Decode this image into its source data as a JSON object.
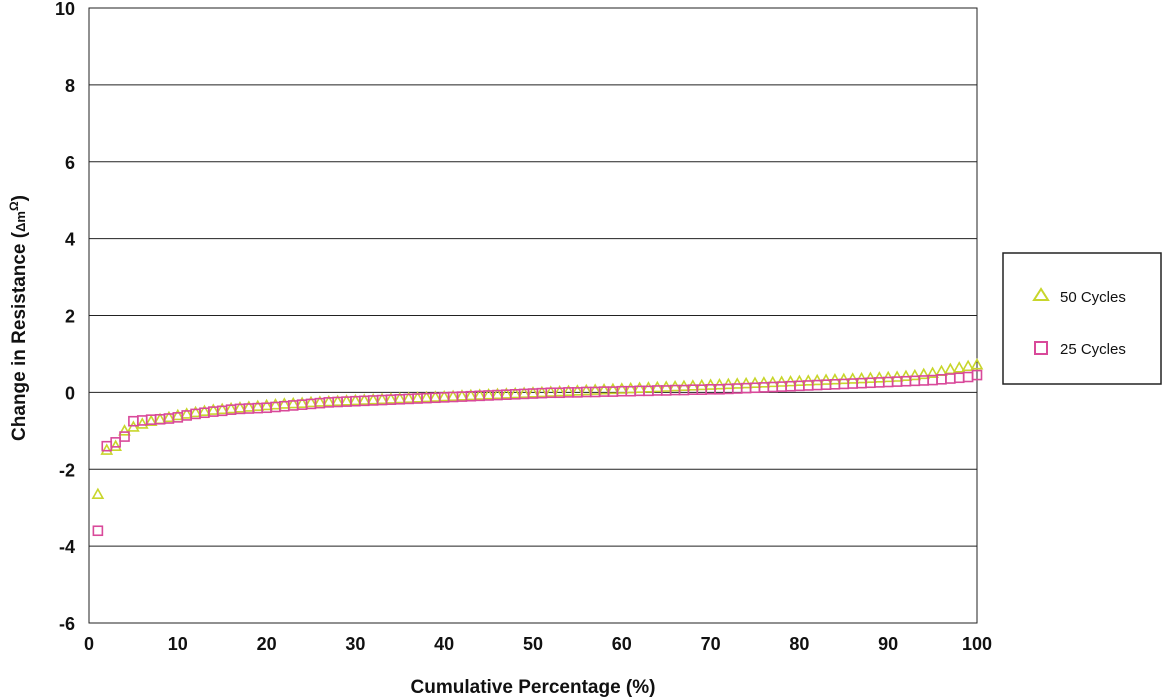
{
  "chart_data": {
    "type": "scatter",
    "title": "",
    "xlabel": "Cumulative Percentage (%)",
    "ylabel_prefix": "Change in Resistance (",
    "ylabel_symbol": "Δm",
    "ylabel_superscript": "Ω",
    "ylabel_suffix": ")",
    "xlim": [
      0,
      100
    ],
    "ylim": [
      -6,
      10
    ],
    "xticks": [
      0,
      10,
      20,
      30,
      40,
      50,
      60,
      70,
      80,
      90,
      100
    ],
    "yticks": [
      -6,
      -4,
      -2,
      0,
      2,
      4,
      6,
      8,
      10
    ],
    "grid": "horizontal",
    "legend_position": "right",
    "series": [
      {
        "name": "50 Cycles",
        "marker": "triangle",
        "color": "#c8d62b",
        "values": [
          [
            1,
            -2.65
          ],
          [
            2,
            -1.5
          ],
          [
            3,
            -1.4
          ],
          [
            4,
            -1.0
          ],
          [
            5,
            -0.9
          ],
          [
            6,
            -0.82
          ],
          [
            7,
            -0.75
          ],
          [
            8,
            -0.7
          ],
          [
            9,
            -0.65
          ],
          [
            10,
            -0.6
          ],
          [
            11,
            -0.56
          ],
          [
            12,
            -0.52
          ],
          [
            13,
            -0.49
          ],
          [
            14,
            -0.46
          ],
          [
            15,
            -0.44
          ],
          [
            16,
            -0.42
          ],
          [
            17,
            -0.4
          ],
          [
            18,
            -0.38
          ],
          [
            19,
            -0.36
          ],
          [
            20,
            -0.34
          ],
          [
            21,
            -0.32
          ],
          [
            22,
            -0.3
          ],
          [
            23,
            -0.29
          ],
          [
            24,
            -0.28
          ],
          [
            25,
            -0.26
          ],
          [
            26,
            -0.25
          ],
          [
            27,
            -0.24
          ],
          [
            28,
            -0.23
          ],
          [
            29,
            -0.22
          ],
          [
            30,
            -0.21
          ],
          [
            31,
            -0.2
          ],
          [
            32,
            -0.19
          ],
          [
            33,
            -0.18
          ],
          [
            34,
            -0.17
          ],
          [
            35,
            -0.16
          ],
          [
            36,
            -0.15
          ],
          [
            37,
            -0.14
          ],
          [
            38,
            -0.13
          ],
          [
            39,
            -0.12
          ],
          [
            40,
            -0.11
          ],
          [
            41,
            -0.1
          ],
          [
            42,
            -0.09
          ],
          [
            43,
            -0.08
          ],
          [
            44,
            -0.07
          ],
          [
            45,
            -0.06
          ],
          [
            46,
            -0.05
          ],
          [
            47,
            -0.04
          ],
          [
            48,
            -0.03
          ],
          [
            49,
            -0.02
          ],
          [
            50,
            -0.01
          ],
          [
            51,
            0.0
          ],
          [
            52,
            0.01
          ],
          [
            53,
            0.02
          ],
          [
            54,
            0.03
          ],
          [
            55,
            0.04
          ],
          [
            56,
            0.05
          ],
          [
            57,
            0.06
          ],
          [
            58,
            0.07
          ],
          [
            59,
            0.08
          ],
          [
            60,
            0.09
          ],
          [
            61,
            0.1
          ],
          [
            62,
            0.11
          ],
          [
            63,
            0.12
          ],
          [
            64,
            0.13
          ],
          [
            65,
            0.14
          ],
          [
            66,
            0.15
          ],
          [
            67,
            0.16
          ],
          [
            68,
            0.17
          ],
          [
            69,
            0.18
          ],
          [
            70,
            0.19
          ],
          [
            71,
            0.2
          ],
          [
            72,
            0.21
          ],
          [
            73,
            0.22
          ],
          [
            74,
            0.23
          ],
          [
            75,
            0.24
          ],
          [
            76,
            0.25
          ],
          [
            77,
            0.26
          ],
          [
            78,
            0.27
          ],
          [
            79,
            0.28
          ],
          [
            80,
            0.29
          ],
          [
            81,
            0.3
          ],
          [
            82,
            0.31
          ],
          [
            83,
            0.32
          ],
          [
            84,
            0.33
          ],
          [
            85,
            0.34
          ],
          [
            86,
            0.35
          ],
          [
            87,
            0.36
          ],
          [
            88,
            0.37
          ],
          [
            89,
            0.38
          ],
          [
            90,
            0.39
          ],
          [
            91,
            0.4
          ],
          [
            92,
            0.42
          ],
          [
            93,
            0.44
          ],
          [
            94,
            0.47
          ],
          [
            95,
            0.5
          ],
          [
            96,
            0.55
          ],
          [
            97,
            0.6
          ],
          [
            98,
            0.64
          ],
          [
            99,
            0.68
          ],
          [
            100,
            0.72
          ]
        ]
      },
      {
        "name": "25 Cycles",
        "marker": "square",
        "color": "#d9499a",
        "values": [
          [
            1,
            -3.6
          ],
          [
            2,
            -1.4
          ],
          [
            3,
            -1.3
          ],
          [
            4,
            -1.15
          ],
          [
            5,
            -0.75
          ],
          [
            6,
            -0.73
          ],
          [
            7,
            -0.71
          ],
          [
            8,
            -0.7
          ],
          [
            9,
            -0.68
          ],
          [
            10,
            -0.65
          ],
          [
            11,
            -0.6
          ],
          [
            12,
            -0.56
          ],
          [
            13,
            -0.53
          ],
          [
            14,
            -0.5
          ],
          [
            15,
            -0.48
          ],
          [
            16,
            -0.45
          ],
          [
            17,
            -0.43
          ],
          [
            18,
            -0.42
          ],
          [
            19,
            -0.41
          ],
          [
            20,
            -0.4
          ],
          [
            21,
            -0.38
          ],
          [
            22,
            -0.36
          ],
          [
            23,
            -0.34
          ],
          [
            24,
            -0.32
          ],
          [
            25,
            -0.3
          ],
          [
            26,
            -0.28
          ],
          [
            27,
            -0.26
          ],
          [
            28,
            -0.25
          ],
          [
            29,
            -0.24
          ],
          [
            30,
            -0.23
          ],
          [
            31,
            -0.22
          ],
          [
            32,
            -0.21
          ],
          [
            33,
            -0.2
          ],
          [
            34,
            -0.19
          ],
          [
            35,
            -0.18
          ],
          [
            36,
            -0.17
          ],
          [
            37,
            -0.16
          ],
          [
            38,
            -0.15
          ],
          [
            39,
            -0.14
          ],
          [
            40,
            -0.13
          ],
          [
            41,
            -0.12
          ],
          [
            42,
            -0.11
          ],
          [
            43,
            -0.1
          ],
          [
            44,
            -0.09
          ],
          [
            45,
            -0.08
          ],
          [
            46,
            -0.07
          ],
          [
            47,
            -0.06
          ],
          [
            48,
            -0.05
          ],
          [
            49,
            -0.04
          ],
          [
            50,
            -0.03
          ],
          [
            51,
            -0.02
          ],
          [
            52,
            -0.01
          ],
          [
            53,
            -0.01
          ],
          [
            54,
            0.0
          ],
          [
            55,
            0.0
          ],
          [
            56,
            0.01
          ],
          [
            57,
            0.01
          ],
          [
            58,
            0.02
          ],
          [
            59,
            0.02
          ],
          [
            60,
            0.03
          ],
          [
            61,
            0.03
          ],
          [
            62,
            0.04
          ],
          [
            63,
            0.04
          ],
          [
            64,
            0.05
          ],
          [
            65,
            0.05
          ],
          [
            66,
            0.06
          ],
          [
            67,
            0.06
          ],
          [
            68,
            0.07
          ],
          [
            69,
            0.07
          ],
          [
            70,
            0.08
          ],
          [
            71,
            0.08
          ],
          [
            72,
            0.09
          ],
          [
            73,
            0.1
          ],
          [
            74,
            0.11
          ],
          [
            75,
            0.12
          ],
          [
            76,
            0.13
          ],
          [
            77,
            0.14
          ],
          [
            78,
            0.15
          ],
          [
            79,
            0.16
          ],
          [
            80,
            0.17
          ],
          [
            81,
            0.18
          ],
          [
            82,
            0.19
          ],
          [
            83,
            0.2
          ],
          [
            84,
            0.21
          ],
          [
            85,
            0.22
          ],
          [
            86,
            0.23
          ],
          [
            87,
            0.24
          ],
          [
            88,
            0.25
          ],
          [
            89,
            0.26
          ],
          [
            90,
            0.27
          ],
          [
            91,
            0.28
          ],
          [
            92,
            0.29
          ],
          [
            93,
            0.3
          ],
          [
            94,
            0.31
          ],
          [
            95,
            0.32
          ],
          [
            96,
            0.34
          ],
          [
            97,
            0.36
          ],
          [
            98,
            0.38
          ],
          [
            99,
            0.4
          ],
          [
            100,
            0.45
          ]
        ]
      }
    ]
  }
}
